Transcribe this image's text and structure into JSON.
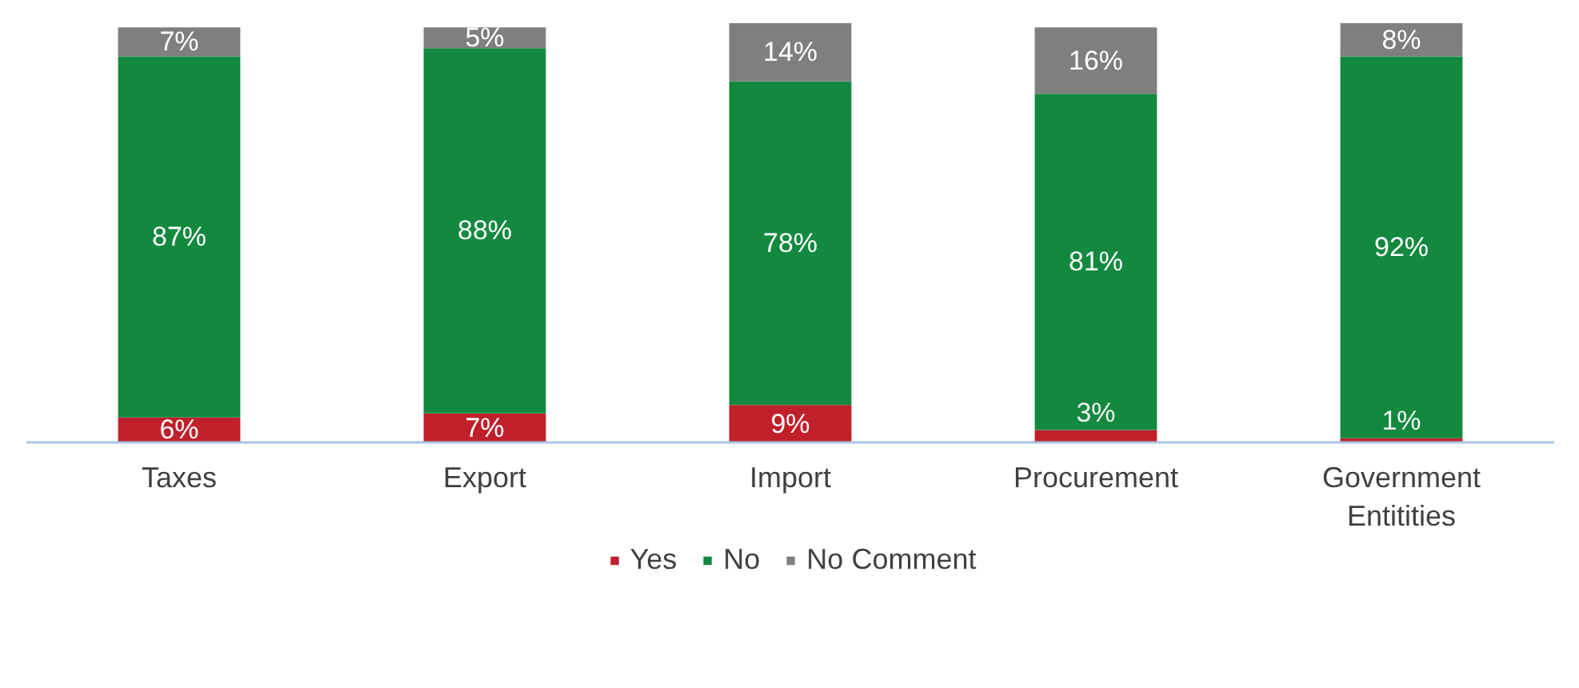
{
  "chart_data": {
    "type": "bar",
    "stacked": true,
    "categories": [
      "Taxes",
      "Export",
      "Import",
      "Procurement",
      "Government Entitities"
    ],
    "series": [
      {
        "name": "Yes",
        "color": "#c0202a",
        "values": [
          6,
          7,
          9,
          3,
          1
        ],
        "value_labels": [
          "6%",
          "7%",
          "9%",
          "3%",
          "1%"
        ]
      },
      {
        "name": "No",
        "color": "#12893f",
        "values": [
          87,
          88,
          78,
          81,
          92
        ],
        "value_labels": [
          "87%",
          "88%",
          "78%",
          "81%",
          "92%"
        ]
      },
      {
        "name": "No Comment",
        "color": "#7f7f7f",
        "values": [
          7,
          5,
          14,
          16,
          8
        ],
        "value_labels": [
          "7%",
          "5%",
          "14%",
          "16%",
          "8%"
        ]
      }
    ],
    "legend": "bottom",
    "grid": false
  }
}
